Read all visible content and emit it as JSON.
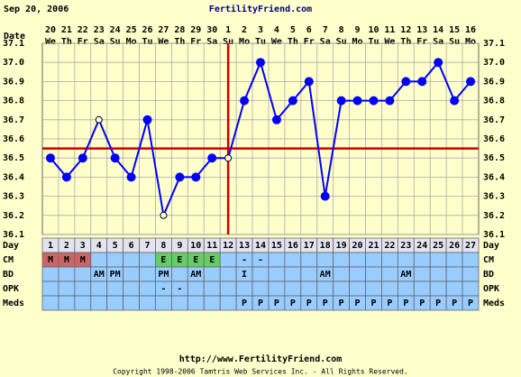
{
  "chart_data": {
    "type": "line",
    "date": "Sep 20, 2006",
    "title": "FertilityFriend.com",
    "date_label": "Date",
    "day_label": "Day",
    "dates": [
      20,
      21,
      22,
      23,
      24,
      25,
      26,
      27,
      28,
      29,
      30,
      1,
      2,
      3,
      4,
      5,
      6,
      7,
      8,
      9,
      10,
      11,
      12,
      13,
      14,
      15,
      16
    ],
    "weekdays": [
      "We",
      "Th",
      "Fr",
      "Sa",
      "Su",
      "Mo",
      "Tu",
      "We",
      "Th",
      "Fr",
      "Sa",
      "Su",
      "Mo",
      "Tu",
      "We",
      "Th",
      "Fr",
      "Sa",
      "Su",
      "Mo",
      "Tu",
      "We",
      "Th",
      "Fr",
      "Sa",
      "Su",
      "Mo"
    ],
    "days": [
      1,
      2,
      3,
      4,
      5,
      6,
      7,
      8,
      9,
      10,
      11,
      12,
      13,
      14,
      15,
      16,
      17,
      18,
      19,
      20,
      21,
      22,
      23,
      24,
      25,
      26,
      27
    ],
    "values": [
      36.5,
      36.4,
      36.5,
      36.7,
      36.5,
      36.4,
      36.7,
      36.2,
      36.4,
      36.4,
      36.5,
      36.5,
      36.8,
      37.0,
      36.7,
      36.8,
      36.9,
      36.3,
      36.8,
      36.8,
      36.8,
      36.8,
      36.9,
      36.9,
      37.0,
      36.8,
      36.9
    ],
    "color": "#0000ff",
    "open_days": [
      4,
      8,
      12
    ],
    "ylim": [
      36.1,
      37.1
    ],
    "yticks": [
      36.1,
      36.2,
      36.3,
      36.4,
      36.5,
      36.6,
      36.7,
      36.8,
      36.9,
      {
        "value": 37,
        "label": "37.0"
      },
      37.1
    ],
    "grid": true,
    "coverline": 36.55,
    "ovulation_day": 12,
    "line_color": "#cc0000",
    "row_color": "#99ccff",
    "cell_colors": {
      "M": "#cc6666",
      "E": "#66cc66"
    },
    "rows": [
      {
        "label": "CM",
        "cells": [
          "M",
          "M",
          "M",
          null,
          null,
          null,
          null,
          "E",
          "E",
          "E",
          "E",
          null,
          "-",
          "-",
          null,
          null,
          null,
          null,
          null,
          null,
          null,
          null,
          null,
          null,
          null,
          null,
          null
        ]
      },
      {
        "label": "BD",
        "cells": [
          null,
          null,
          null,
          "AM",
          "PM",
          null,
          null,
          "PM",
          null,
          "AM",
          null,
          null,
          "I",
          null,
          null,
          null,
          null,
          "AM",
          null,
          null,
          null,
          null,
          "AM",
          null,
          null,
          null,
          null
        ]
      },
      {
        "label": "OPK",
        "cells": [
          null,
          null,
          null,
          null,
          null,
          null,
          null,
          "-",
          "-",
          null,
          null,
          null,
          null,
          null,
          null,
          null,
          null,
          null,
          null,
          null,
          null,
          null,
          null,
          null,
          null,
          null,
          null
        ]
      },
      {
        "label": "Meds",
        "cells": [
          null,
          null,
          null,
          null,
          null,
          null,
          null,
          null,
          null,
          null,
          null,
          null,
          "P",
          "P",
          "P",
          "P",
          "P",
          "P",
          "P",
          "P",
          "P",
          "P",
          "P",
          "P",
          "P",
          "P",
          "P"
        ]
      }
    ],
    "url": "http://www.FertilityFriend.com",
    "copyright": "Copyright 1998-2006 Tamtris Web Services Inc. - All Rights Reserved."
  }
}
